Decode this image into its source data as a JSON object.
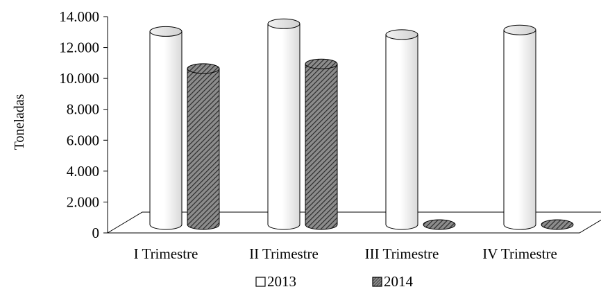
{
  "chart_data": {
    "type": "bar",
    "style": "3d-cylinder",
    "categories": [
      "I Trimestre",
      "II Trimestre",
      "III Trimestre",
      "IV Trimestre"
    ],
    "series": [
      {
        "name": "2013",
        "values": [
          12500,
          13000,
          12300,
          12600
        ],
        "fill": "white"
      },
      {
        "name": "2014",
        "values": [
          10100,
          10400,
          0,
          0
        ],
        "fill": "hatched"
      }
    ],
    "ylabel": "Toneladas",
    "xlabel": "",
    "title": "",
    "ylim": [
      0,
      14000
    ],
    "yticks": [
      "0",
      "2.000",
      "4.000",
      "6.000",
      "8.000",
      "10.000",
      "12.000",
      "14.000"
    ],
    "grid": false,
    "legend": {
      "position": "bottom",
      "entries": [
        "2013",
        "2014"
      ]
    },
    "colors": {
      "stroke": "#000000",
      "bar_light": "#ffffff",
      "bar_shade": "#d9d9d9",
      "hatch_fg": "#2b2b2b",
      "hatch_bg": "#8c8c8c"
    }
  }
}
